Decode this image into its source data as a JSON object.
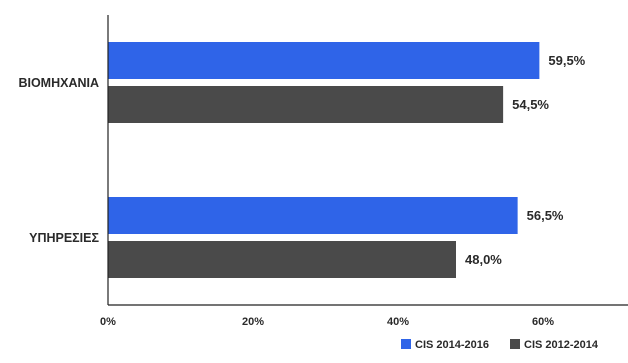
{
  "chart_data": {
    "type": "bar",
    "orientation": "horizontal",
    "categories": [
      "ΒΙΟΜΗΧΑΝΙΑ",
      "ΥΠΗΡΕΣΙΕΣ"
    ],
    "series": [
      {
        "name": "CIS 2014-2016",
        "color": "#2f64e8",
        "values": [
          59.5,
          56.5
        ],
        "labels": [
          "59,5%",
          "56,5%"
        ]
      },
      {
        "name": "CIS 2012-2014",
        "color": "#4a4a4a",
        "values": [
          54.5,
          48.0
        ],
        "labels": [
          "54,5%",
          "48,0%"
        ]
      }
    ],
    "xlim": [
      0,
      70
    ],
    "xticks": [
      {
        "value": 0,
        "label": "0%"
      },
      {
        "value": 20,
        "label": "20%"
      },
      {
        "value": 40,
        "label": "40%"
      },
      {
        "value": 60,
        "label": "60%"
      }
    ],
    "grid": false,
    "legend_position": "bottom-right"
  }
}
